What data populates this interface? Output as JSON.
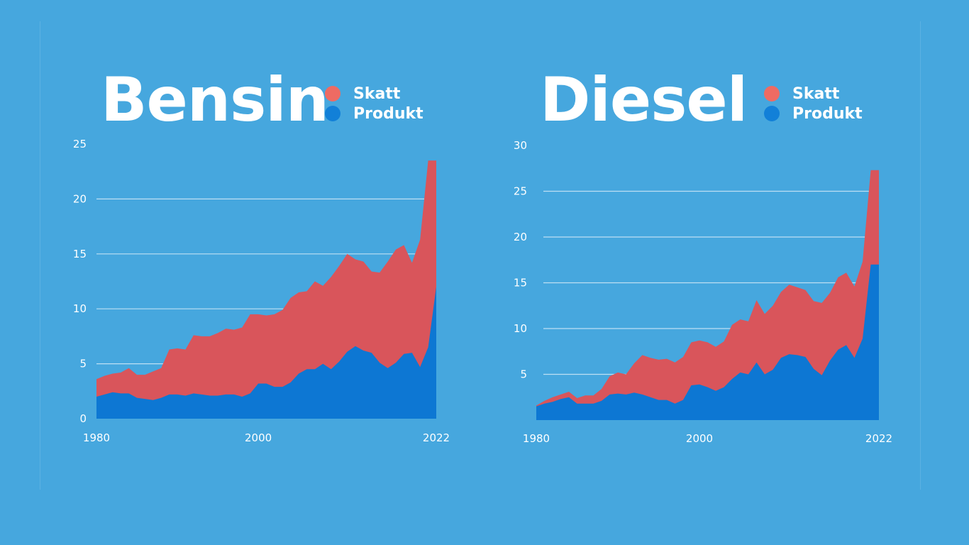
{
  "colors": {
    "background": "#46a7de",
    "skatt": "#d9555b",
    "produkt": "#0d77d3",
    "skatt_legend": "#ee6b63",
    "produkt_legend": "#1280d8",
    "grid": "#ffffff"
  },
  "chart_data": [
    {
      "type": "area",
      "stacked": true,
      "title": "Bensin",
      "legend": "top-right",
      "series": [
        {
          "name": "Skatt",
          "color": "#d9555b"
        },
        {
          "name": "Produkt",
          "color": "#0d77d3"
        }
      ],
      "xlim": [
        1980,
        2022
      ],
      "ylim": [
        0,
        25
      ],
      "x_ticks": [
        "1980",
        "2000",
        "2022"
      ],
      "y_ticks": [
        "0",
        "5",
        "10",
        "15",
        "20",
        "25"
      ],
      "grid": true,
      "x": [
        1980,
        1981,
        1982,
        1983,
        1984,
        1985,
        1986,
        1987,
        1988,
        1989,
        1990,
        1991,
        1992,
        1993,
        1994,
        1995,
        1996,
        1997,
        1998,
        1999,
        2000,
        2001,
        2002,
        2003,
        2004,
        2005,
        2006,
        2007,
        2008,
        2009,
        2010,
        2011,
        2012,
        2013,
        2014,
        2015,
        2016,
        2017,
        2018,
        2019,
        2020,
        2021,
        2022
      ],
      "produkt_values": [
        2.0,
        2.2,
        2.4,
        2.3,
        2.3,
        1.9,
        1.8,
        1.7,
        1.9,
        2.2,
        2.2,
        2.1,
        2.3,
        2.2,
        2.1,
        2.1,
        2.2,
        2.2,
        2.0,
        2.3,
        3.2,
        3.2,
        2.9,
        2.9,
        3.3,
        4.1,
        4.5,
        4.5,
        5.0,
        4.5,
        5.2,
        6.1,
        6.6,
        6.2,
        6.0,
        5.1,
        4.6,
        5.1,
        5.9,
        6.0,
        4.7,
        6.5,
        12.0
      ],
      "total_values": [
        3.6,
        3.9,
        4.1,
        4.2,
        4.6,
        4.0,
        4.0,
        4.3,
        4.6,
        6.3,
        6.4,
        6.3,
        7.6,
        7.5,
        7.5,
        7.8,
        8.2,
        8.1,
        8.3,
        9.5,
        9.5,
        9.4,
        9.5,
        9.9,
        11.0,
        11.5,
        11.6,
        12.5,
        12.1,
        12.9,
        13.9,
        15.0,
        14.5,
        14.3,
        13.4,
        13.3,
        14.3,
        15.4,
        15.8,
        14.2,
        16.3,
        23.5,
        23.5
      ]
    },
    {
      "type": "area",
      "stacked": true,
      "title": "Diesel",
      "legend": "top-right",
      "series": [
        {
          "name": "Skatt",
          "color": "#d9555b"
        },
        {
          "name": "Produkt",
          "color": "#0d77d3"
        }
      ],
      "xlim": [
        1980,
        2022
      ],
      "ylim": [
        0,
        30
      ],
      "x_ticks": [
        "1980",
        "2000",
        "2022"
      ],
      "y_ticks": [
        "5",
        "10",
        "15",
        "20",
        "25",
        "30"
      ],
      "grid": true,
      "x": [
        1980,
        1981,
        1982,
        1983,
        1984,
        1985,
        1986,
        1987,
        1988,
        1989,
        1990,
        1991,
        1992,
        1993,
        1994,
        1995,
        1996,
        1997,
        1998,
        1999,
        2000,
        2001,
        2002,
        2003,
        2004,
        2005,
        2006,
        2007,
        2008,
        2009,
        2010,
        2011,
        2012,
        2013,
        2014,
        2015,
        2016,
        2017,
        2018,
        2019,
        2020,
        2021,
        2022
      ],
      "produkt_values": [
        1.5,
        1.8,
        2.0,
        2.3,
        2.5,
        1.8,
        1.8,
        1.8,
        2.1,
        2.8,
        2.9,
        2.8,
        3.0,
        2.8,
        2.5,
        2.2,
        2.2,
        1.8,
        2.2,
        3.8,
        3.9,
        3.6,
        3.2,
        3.6,
        4.5,
        5.2,
        5.0,
        6.3,
        5.0,
        5.5,
        6.8,
        7.2,
        7.1,
        6.9,
        5.6,
        4.9,
        6.5,
        7.7,
        8.2,
        6.8,
        8.9,
        17.0,
        17.0
      ],
      "total_values": [
        1.6,
        2.1,
        2.5,
        2.8,
        3.1,
        2.4,
        2.7,
        2.7,
        3.4,
        4.8,
        5.2,
        5.0,
        6.2,
        7.1,
        6.8,
        6.6,
        6.7,
        6.3,
        6.9,
        8.5,
        8.7,
        8.5,
        8.0,
        8.6,
        10.4,
        11.0,
        10.8,
        13.1,
        11.6,
        12.5,
        14.0,
        14.8,
        14.5,
        14.2,
        13.0,
        12.8,
        13.9,
        15.6,
        16.1,
        14.6,
        17.3,
        27.3,
        27.3
      ]
    }
  ]
}
